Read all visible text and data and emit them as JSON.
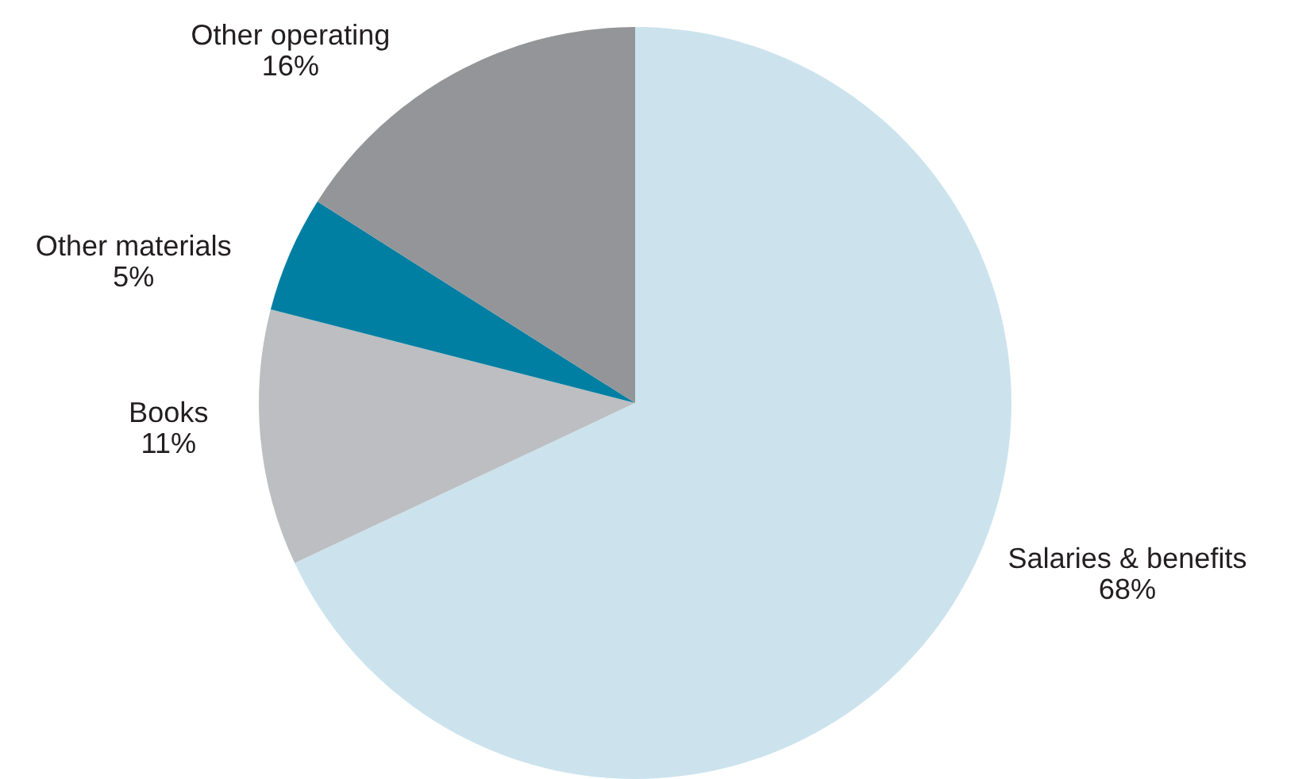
{
  "chart_data": {
    "type": "pie",
    "categories": [
      "Salaries & benefits",
      "Books",
      "Other materials",
      "Other operating"
    ],
    "values": [
      68,
      11,
      5,
      16
    ],
    "colors": [
      "#cce3ee",
      "#bcbec1",
      "#007fa3",
      "#939598"
    ],
    "value_labels": [
      "68%",
      "11%",
      "5%",
      "16%"
    ]
  }
}
